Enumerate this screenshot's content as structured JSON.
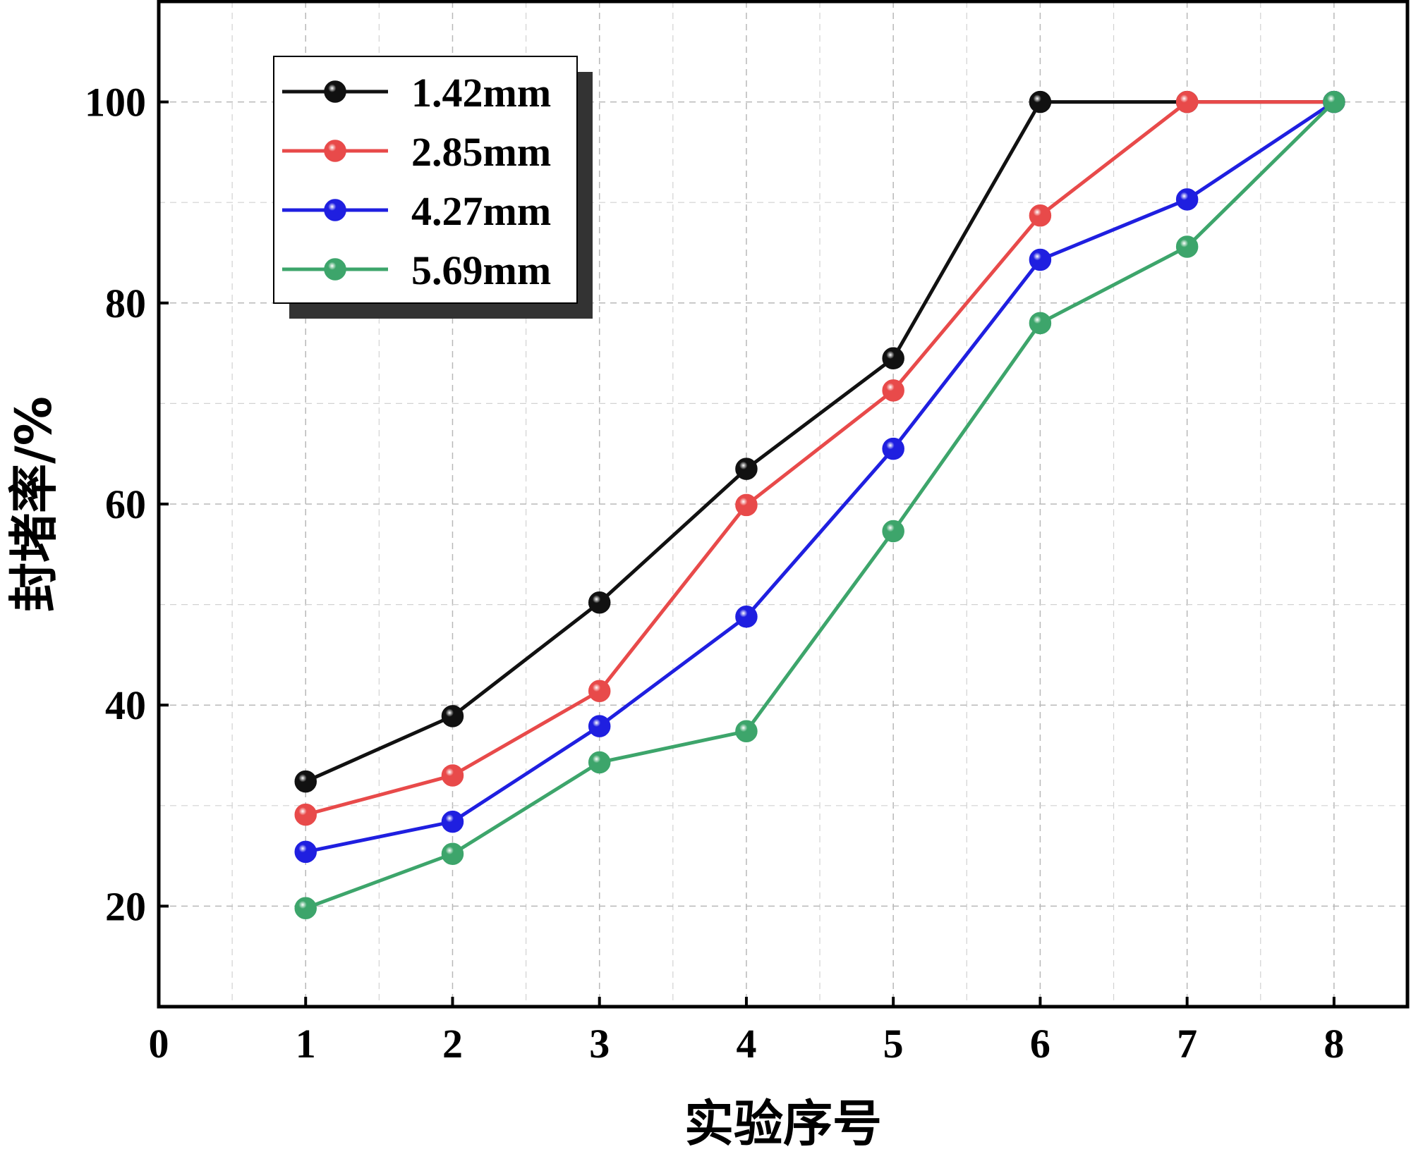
{
  "chart_data": {
    "type": "line",
    "xlabel": "实验序号",
    "ylabel": "封堵率/%",
    "xlim": [
      0,
      8.5
    ],
    "ylim": [
      10,
      110
    ],
    "xticks": [
      0,
      1,
      2,
      3,
      4,
      5,
      6,
      7,
      8
    ],
    "yticks": [
      20,
      40,
      60,
      80,
      100
    ],
    "grid": true,
    "legend_position": "top-left",
    "x": [
      1,
      2,
      3,
      4,
      5,
      6,
      7,
      8
    ],
    "series": [
      {
        "name": "1.42mm",
        "color": "#111111",
        "values": [
          32.4,
          38.9,
          50.2,
          63.5,
          74.5,
          100,
          100,
          100
        ]
      },
      {
        "name": "2.85mm",
        "color": "#e84a4a",
        "values": [
          29.1,
          33.0,
          41.4,
          59.9,
          71.3,
          88.7,
          100,
          100
        ]
      },
      {
        "name": "4.27mm",
        "color": "#1f1fe0",
        "values": [
          25.4,
          28.4,
          37.9,
          48.8,
          65.5,
          84.3,
          90.3,
          100
        ]
      },
      {
        "name": "5.69mm",
        "color": "#3da56b",
        "values": [
          19.8,
          25.2,
          34.3,
          37.4,
          57.3,
          78.0,
          85.6,
          100
        ]
      }
    ]
  }
}
